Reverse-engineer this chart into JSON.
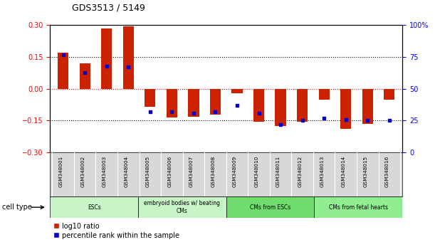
{
  "title": "GDS3513 / 5149",
  "samples": [
    "GSM348001",
    "GSM348002",
    "GSM348003",
    "GSM348004",
    "GSM348005",
    "GSM348006",
    "GSM348007",
    "GSM348008",
    "GSM348009",
    "GSM348010",
    "GSM348011",
    "GSM348012",
    "GSM348013",
    "GSM348014",
    "GSM348015",
    "GSM348016"
  ],
  "log10_ratio": [
    0.17,
    0.12,
    0.285,
    0.295,
    -0.085,
    -0.135,
    -0.13,
    -0.12,
    -0.02,
    -0.155,
    -0.175,
    -0.155,
    -0.05,
    -0.19,
    -0.165,
    -0.05
  ],
  "percentile_rank": [
    77,
    63,
    68,
    67,
    32,
    32,
    31,
    32,
    37,
    31,
    22,
    25,
    27,
    26,
    25,
    25
  ],
  "cell_type_groups": [
    {
      "label": "ESCs",
      "start": 0,
      "end": 3
    },
    {
      "label": "embryoid bodies w/ beating\nCMs",
      "start": 4,
      "end": 7
    },
    {
      "label": "CMs from ESCs",
      "start": 8,
      "end": 11
    },
    {
      "label": "CMs from fetal hearts",
      "start": 12,
      "end": 15
    }
  ],
  "group_colors": [
    "#C8F5C8",
    "#C8F5C8",
    "#6EDD6E",
    "#90EE90"
  ],
  "bar_color_red": "#CC2200",
  "bar_color_blue": "#0000CC",
  "ylim_left": [
    -0.3,
    0.3
  ],
  "ylim_right": [
    0,
    100
  ],
  "yticks_left": [
    -0.3,
    -0.15,
    0.0,
    0.15,
    0.3
  ],
  "yticks_right": [
    0,
    25,
    50,
    75,
    100
  ],
  "legend_items": [
    {
      "label": "log10 ratio",
      "color": "#CC2200"
    },
    {
      "label": "percentile rank within the sample",
      "color": "#0000CC"
    }
  ],
  "cell_type_label": "cell type",
  "background_color": "#ffffff"
}
